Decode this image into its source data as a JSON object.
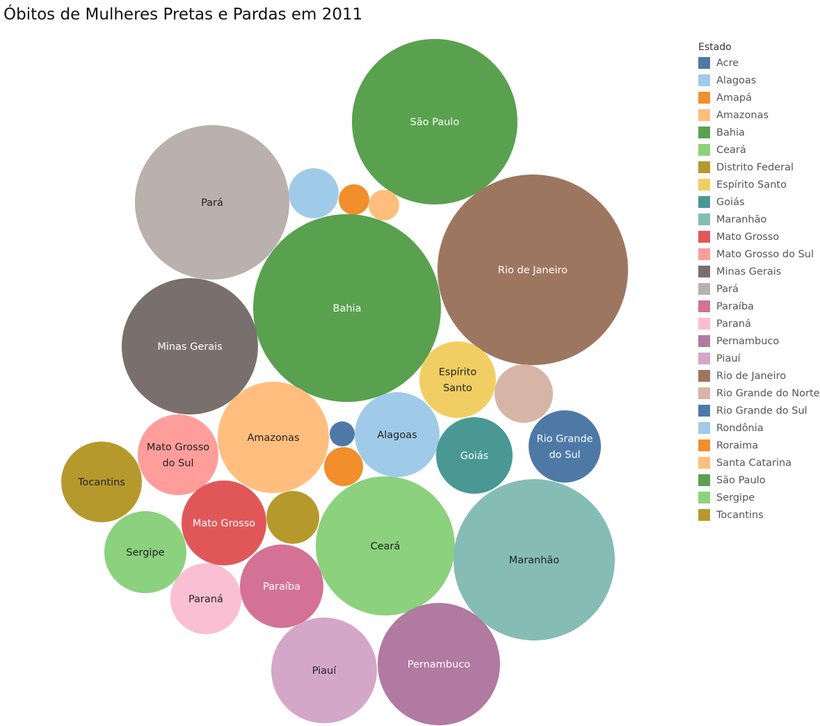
{
  "title": "Óbitos de Mulheres Pretas e Pardas em 2011",
  "legend": {
    "title": "Estado",
    "items": [
      {
        "label": "Acre",
        "color": "#4e79a7"
      },
      {
        "label": "Alagoas",
        "color": "#a0cbe8"
      },
      {
        "label": "Amapá",
        "color": "#f28e2b"
      },
      {
        "label": "Amazonas",
        "color": "#ffbe7d"
      },
      {
        "label": "Bahia",
        "color": "#59a14f"
      },
      {
        "label": "Ceará",
        "color": "#8cd17d"
      },
      {
        "label": "Distrito Federal",
        "color": "#b6992d"
      },
      {
        "label": "Espírito Santo",
        "color": "#f1ce63"
      },
      {
        "label": "Goiás",
        "color": "#499894"
      },
      {
        "label": "Maranhão",
        "color": "#86bcb6"
      },
      {
        "label": "Mato Grosso",
        "color": "#e15759"
      },
      {
        "label": "Mato Grosso do Sul",
        "color": "#ff9d9a"
      },
      {
        "label": "Minas Gerais",
        "color": "#79706e"
      },
      {
        "label": "Pará",
        "color": "#bab0ac"
      },
      {
        "label": "Paraíba",
        "color": "#d37295"
      },
      {
        "label": "Paraná",
        "color": "#fabfd2"
      },
      {
        "label": "Pernambuco",
        "color": "#b07aa1"
      },
      {
        "label": "Piauí",
        "color": "#d4a6c8"
      },
      {
        "label": "Rio de Janeiro",
        "color": "#9d7660"
      },
      {
        "label": "Rio Grande do Norte",
        "color": "#d7b5a6"
      },
      {
        "label": "Rio Grande do Sul",
        "color": "#4e79a7"
      },
      {
        "label": "Rondônia",
        "color": "#a0cbe8"
      },
      {
        "label": "Roraima",
        "color": "#f28e2b"
      },
      {
        "label": "Santa Catarina",
        "color": "#ffbe7d"
      },
      {
        "label": "São Paulo",
        "color": "#59a14f"
      },
      {
        "label": "Sergipe",
        "color": "#8cd17d"
      },
      {
        "label": "Tocantins",
        "color": "#b6992d"
      }
    ]
  },
  "bubbles": [
    {
      "state": "São Paulo",
      "label": "São Paulo",
      "color": "#59a14f",
      "text_color": "#ffffff"
    },
    {
      "state": "Pará",
      "label": "Pará",
      "color": "#bab0ac",
      "text_color": "#222222"
    },
    {
      "state": "Rondônia",
      "label": "",
      "color": "#a0cbe8",
      "text_color": "#222222"
    },
    {
      "state": "Roraima",
      "label": "",
      "color": "#f28e2b",
      "text_color": "#222222"
    },
    {
      "state": "Santa Catarina",
      "label": "",
      "color": "#ffbe7d",
      "text_color": "#222222"
    },
    {
      "state": "Rio de Janeiro",
      "label": "Rio de Janeiro",
      "color": "#9d7660",
      "text_color": "#ffffff"
    },
    {
      "state": "Bahia",
      "label": "Bahia",
      "color": "#59a14f",
      "text_color": "#ffffff"
    },
    {
      "state": "Minas Gerais",
      "label": "Minas Gerais",
      "color": "#79706e",
      "text_color": "#ffffff"
    },
    {
      "state": "Espírito Santo",
      "label": "Espírito\nSanto",
      "color": "#f1ce63",
      "text_color": "#222222"
    },
    {
      "state": "Rio Grande do Norte",
      "label": "",
      "color": "#d7b5a6",
      "text_color": "#222222"
    },
    {
      "state": "Amazonas",
      "label": "Amazonas",
      "color": "#ffbe7d",
      "text_color": "#222222"
    },
    {
      "state": "Acre",
      "label": "",
      "color": "#4e79a7",
      "text_color": "#ffffff"
    },
    {
      "state": "Amapá",
      "label": "",
      "color": "#f28e2b",
      "text_color": "#222222"
    },
    {
      "state": "Alagoas",
      "label": "Alagoas",
      "color": "#a0cbe8",
      "text_color": "#222222"
    },
    {
      "state": "Goiás",
      "label": "Goiás",
      "color": "#499894",
      "text_color": "#ffffff"
    },
    {
      "state": "Rio Grande do Sul",
      "label": "Rio Grande\ndo Sul",
      "color": "#4e79a7",
      "text_color": "#ffffff"
    },
    {
      "state": "Mato Grosso do Sul",
      "label": "Mato Grosso\ndo Sul",
      "color": "#ff9d9a",
      "text_color": "#222222"
    },
    {
      "state": "Tocantins",
      "label": "Tocantins",
      "color": "#b6992d",
      "text_color": "#222222"
    },
    {
      "state": "Mato Grosso",
      "label": "Mato Grosso",
      "color": "#e15759",
      "text_color": "#ffffff"
    },
    {
      "state": "Distrito Federal",
      "label": "",
      "color": "#b6992d",
      "text_color": "#222222"
    },
    {
      "state": "Ceará",
      "label": "Ceará",
      "color": "#8cd17d",
      "text_color": "#222222"
    },
    {
      "state": "Maranhão",
      "label": "Maranhão",
      "color": "#86bcb6",
      "text_color": "#222222"
    },
    {
      "state": "Sergipe",
      "label": "Sergipe",
      "color": "#8cd17d",
      "text_color": "#222222"
    },
    {
      "state": "Paraná",
      "label": "Paraná",
      "color": "#fabfd2",
      "text_color": "#222222"
    },
    {
      "state": "Paraíba",
      "label": "Paraíba",
      "color": "#d37295",
      "text_color": "#ffffff"
    },
    {
      "state": "Piauí",
      "label": "Piauí",
      "color": "#d4a6c8",
      "text_color": "#222222"
    },
    {
      "state": "Pernambuco",
      "label": "Pernambuco",
      "color": "#b07aa1",
      "text_color": "#ffffff"
    }
  ]
}
